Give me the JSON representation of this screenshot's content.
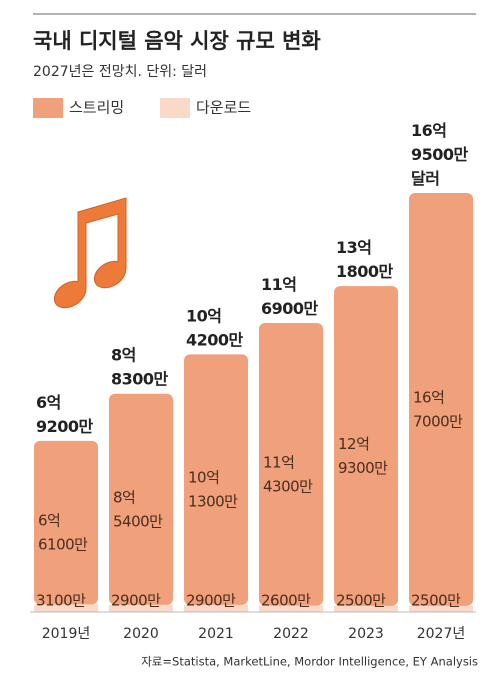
{
  "chart_data": {
    "type": "stacked-bar",
    "title": "국내 디지털 음악 시장 규모 변화",
    "subtitle": "2027년은 전망치. 단위: 달러",
    "categories": [
      "2019년",
      "2020",
      "2021",
      "2022",
      "2023",
      "2027년"
    ],
    "series": [
      {
        "name": "다운로드",
        "color": "#fbd9c8",
        "values": [
          3100,
          2900,
          2900,
          2600,
          2500,
          2500
        ],
        "value_labels": [
          "3100만",
          "2900만",
          "2900만",
          "2600만",
          "2500만",
          "2500만"
        ]
      },
      {
        "name": "스트리밍",
        "color": "#f0a07a",
        "values": [
          66100,
          85400,
          101300,
          114300,
          129300,
          167000
        ],
        "value_labels": [
          "6억 6100만",
          "8억 5400만",
          "10억 1300만",
          "11억 4300만",
          "12억 9300만",
          "16억 7000만"
        ]
      }
    ],
    "total_labels": [
      "6억 9200만",
      "8억 8300만",
      "10억 4200만",
      "11억 6900만",
      "13억 1800만",
      "16억 9500만 달러"
    ],
    "ylim": [
      0,
      180000
    ],
    "source": "자료=Statista, MarketLine, Mordor Intelligence, EY Analysis"
  }
}
